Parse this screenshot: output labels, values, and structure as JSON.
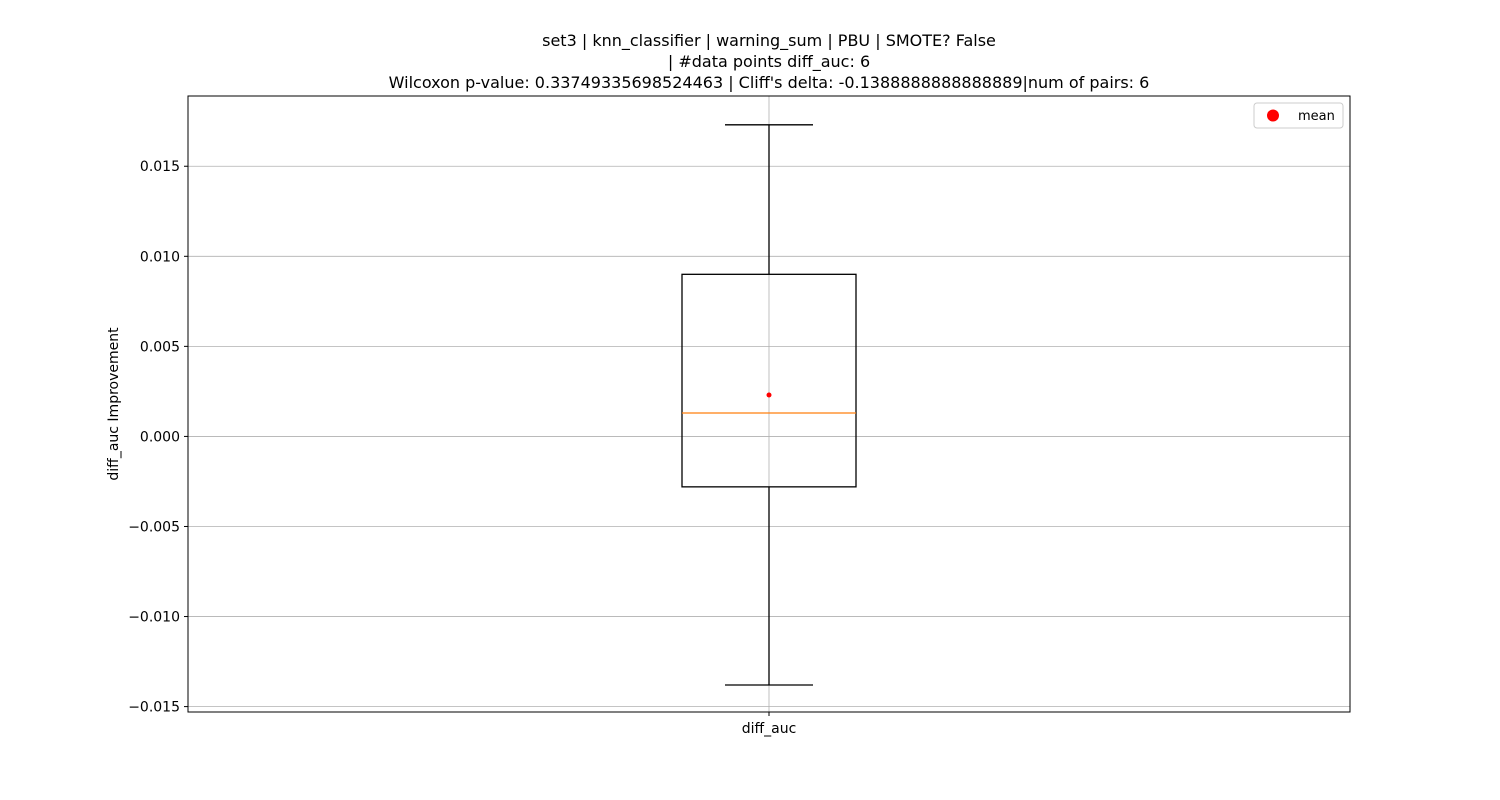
{
  "chart_data": {
    "type": "box",
    "title_lines": [
      "set3 | knn_classifier | warning_sum | PBU | SMOTE? False",
      "| #data points diff_auc: 6",
      "Wilcoxon p-value: 0.33749335698524463 | Cliff's delta: -0.1388888888888889|num of pairs: 6"
    ],
    "xlabel": "",
    "ylabel": "diff_auc Improvement",
    "categories": [
      "diff_auc"
    ],
    "ylim": [
      -0.0153,
      0.0189
    ],
    "yticks": [
      {
        "value": 0.015,
        "label": "0.015"
      },
      {
        "value": 0.01,
        "label": "0.010"
      },
      {
        "value": 0.005,
        "label": "0.005"
      },
      {
        "value": 0.0,
        "label": "0.000"
      },
      {
        "value": -0.005,
        "label": "−0.005"
      },
      {
        "value": -0.01,
        "label": "−0.010"
      },
      {
        "value": -0.015,
        "label": "−0.015"
      }
    ],
    "box": {
      "whisker_low": -0.0138,
      "q1": -0.0028,
      "median": 0.0013,
      "q3": 0.009,
      "whisker_high": 0.0173,
      "mean": 0.0023
    },
    "grid": true,
    "legend": {
      "position": "top-right",
      "entries": [
        {
          "label": "mean",
          "color": "#ff0000",
          "marker": "circle"
        }
      ]
    },
    "colors": {
      "box": "#000000",
      "median": "#ff7f0e",
      "mean": "#ff0000",
      "grid": "#b0b0b0"
    }
  }
}
